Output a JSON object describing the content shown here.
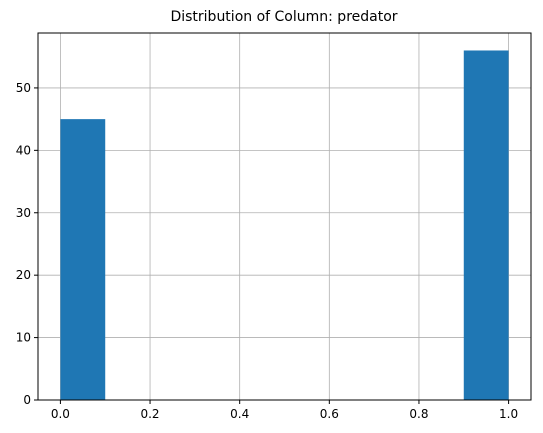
{
  "chart_data": {
    "type": "bar",
    "title": "Distribution of Column: predator",
    "xlabel": "",
    "ylabel": "",
    "xlim": [
      -0.05,
      1.05
    ],
    "ylim": [
      0,
      58.8
    ],
    "grid": true,
    "bar_color": "#1f77b4",
    "bins": [
      {
        "start": 0.0,
        "end": 0.1,
        "count": 45
      },
      {
        "start": 0.1,
        "end": 0.2,
        "count": 0
      },
      {
        "start": 0.2,
        "end": 0.3,
        "count": 0
      },
      {
        "start": 0.3,
        "end": 0.4,
        "count": 0
      },
      {
        "start": 0.4,
        "end": 0.5,
        "count": 0
      },
      {
        "start": 0.5,
        "end": 0.6,
        "count": 0
      },
      {
        "start": 0.6,
        "end": 0.7,
        "count": 0
      },
      {
        "start": 0.7,
        "end": 0.8,
        "count": 0
      },
      {
        "start": 0.8,
        "end": 0.9,
        "count": 0
      },
      {
        "start": 0.9,
        "end": 1.0,
        "count": 56
      }
    ],
    "x_ticks": [
      {
        "value": 0.0,
        "label": "0.0"
      },
      {
        "value": 0.2,
        "label": "0.2"
      },
      {
        "value": 0.4,
        "label": "0.4"
      },
      {
        "value": 0.6,
        "label": "0.6"
      },
      {
        "value": 0.8,
        "label": "0.8"
      },
      {
        "value": 1.0,
        "label": "1.0"
      }
    ],
    "y_ticks": [
      {
        "value": 0,
        "label": "0"
      },
      {
        "value": 10,
        "label": "10"
      },
      {
        "value": 20,
        "label": "20"
      },
      {
        "value": 30,
        "label": "30"
      },
      {
        "value": 40,
        "label": "40"
      },
      {
        "value": 50,
        "label": "50"
      }
    ]
  }
}
